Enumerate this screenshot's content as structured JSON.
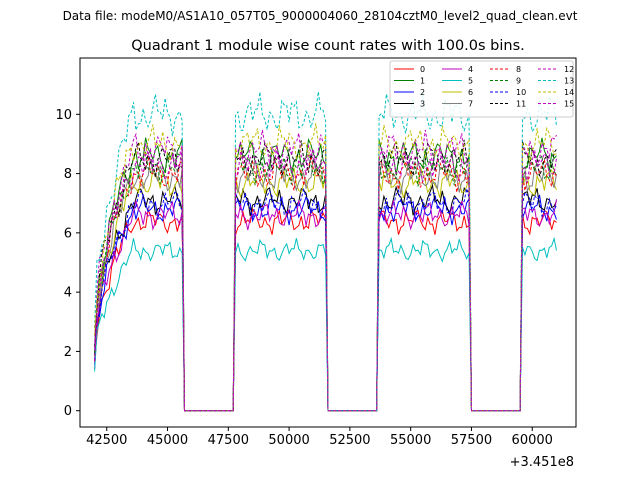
{
  "header_text": "Data file: modeM0/AS1A10_057T05_9000004060_28104cztM0_level2_quad_clean.evt",
  "chart_data": {
    "type": "line",
    "title": "Quadrant 1 module wise count rates with 100.0s bins.",
    "xlabel": "",
    "ylabel": "",
    "x_offset_label": "+3.451e8",
    "xlim": [
      41400,
      61800
    ],
    "ylim": [
      -0.55,
      11.9
    ],
    "x_ticks": [
      42500,
      45000,
      47500,
      50000,
      52500,
      55000,
      57500,
      60000
    ],
    "x_tick_labels": [
      "42500",
      "45000",
      "47500",
      "50000",
      "52500",
      "55000",
      "57500",
      "60000"
    ],
    "y_ticks": [
      0,
      2,
      4,
      6,
      8,
      10
    ],
    "y_tick_labels": [
      "0",
      "2",
      "4",
      "6",
      "8",
      "10"
    ],
    "legend_loc": "upper right",
    "legend_ncol": 4,
    "segments": [
      {
        "start": 42000,
        "end": 45600
      },
      {
        "start": 47800,
        "end": 51500
      },
      {
        "start": 53700,
        "end": 57400
      },
      {
        "start": 59600,
        "end": 61000
      }
    ],
    "series": [
      {
        "name": "0",
        "color": "#ff0000",
        "dash": "solid",
        "level": 6.4
      },
      {
        "name": "1",
        "color": "#008000",
        "dash": "solid",
        "level": 8.6
      },
      {
        "name": "2",
        "color": "#0000ff",
        "dash": "solid",
        "level": 6.8
      },
      {
        "name": "3",
        "color": "#000000",
        "dash": "solid",
        "level": 7.1
      },
      {
        "name": "4",
        "color": "#bf00bf",
        "dash": "solid",
        "level": 6.6
      },
      {
        "name": "5",
        "color": "#00bfbf",
        "dash": "solid",
        "level": 5.4
      },
      {
        "name": "6",
        "color": "#bfbf00",
        "dash": "solid",
        "level": 7.7
      },
      {
        "name": "7",
        "color": "#808080",
        "dash": "solid",
        "level": 7.9
      },
      {
        "name": "8",
        "color": "#ff0000",
        "dash": "dashed",
        "level": 8.0
      },
      {
        "name": "9",
        "color": "#008000",
        "dash": "dashed",
        "level": 8.2
      },
      {
        "name": "10",
        "color": "#0000ff",
        "dash": "dashed",
        "level": 7.0
      },
      {
        "name": "11",
        "color": "#000000",
        "dash": "dashed",
        "level": 8.5
      },
      {
        "name": "12",
        "color": "#bf00bf",
        "dash": "dashed",
        "level": 8.8
      },
      {
        "name": "13",
        "color": "#00bfbf",
        "dash": "dashed",
        "level": 10.0
      },
      {
        "name": "14",
        "color": "#bfbf00",
        "dash": "dashed",
        "level": 9.0
      },
      {
        "name": "15",
        "color": "#bf00bf",
        "dash": "dashed",
        "level": 8.3
      }
    ]
  }
}
